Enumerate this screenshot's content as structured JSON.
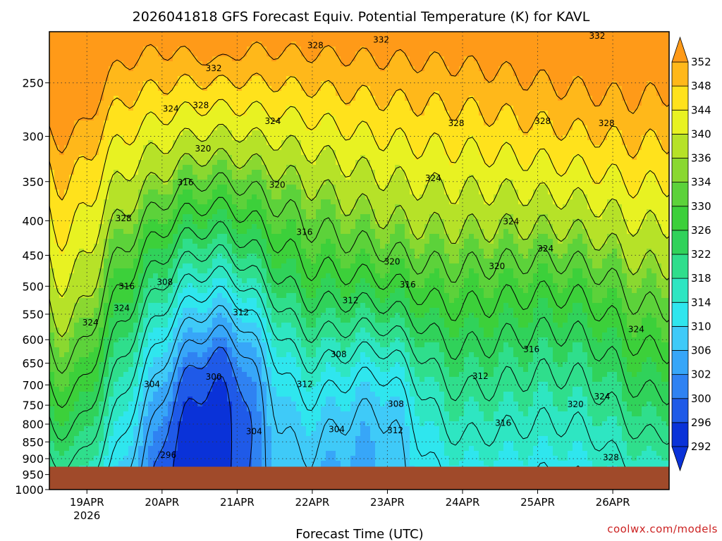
{
  "chart_data": {
    "type": "heatmap",
    "title": "2026041818 GFS Forecast Equiv. Potential Temperature (K) for KAVL",
    "xlabel": "Forecast Time (UTC)",
    "ylabel": "",
    "y_scale": "log-pressure",
    "y_inverted": true,
    "ylim": [
      1000,
      210
    ],
    "xlim_hours": [
      -12,
      186
    ],
    "x_ticks": [
      {
        "label": "19APR",
        "sublabel": "2026",
        "hour": 0
      },
      {
        "label": "20APR",
        "sublabel": "",
        "hour": 24
      },
      {
        "label": "21APR",
        "sublabel": "",
        "hour": 48
      },
      {
        "label": "22APR",
        "sublabel": "",
        "hour": 72
      },
      {
        "label": "23APR",
        "sublabel": "",
        "hour": 96
      },
      {
        "label": "24APR",
        "sublabel": "",
        "hour": 120
      },
      {
        "label": "25APR",
        "sublabel": "",
        "hour": 144
      },
      {
        "label": "26APR",
        "sublabel": "",
        "hour": 168
      }
    ],
    "y_ticks": [
      250,
      300,
      350,
      400,
      450,
      500,
      550,
      600,
      650,
      700,
      750,
      800,
      850,
      900,
      950,
      1000
    ],
    "surface_pressure_hpa": 925,
    "grid": true,
    "colorbar": {
      "levels": [
        292,
        296,
        300,
        302,
        306,
        310,
        314,
        318,
        322,
        326,
        330,
        334,
        336,
        340,
        344,
        348,
        352
      ],
      "colors": [
        "#0a32d8",
        "#1f5ae8",
        "#2f82f2",
        "#37a6f8",
        "#3fcaf8",
        "#2fe6ee",
        "#2ee6c2",
        "#2fde8c",
        "#30d25a",
        "#3cd03a",
        "#5cd23a",
        "#8ad830",
        "#b6e228",
        "#e8f222",
        "#ffe21c",
        "#ffb81a",
        "#ff9a18"
      ]
    },
    "contour_labels": [
      {
        "text": "332",
        "hour": 40.5,
        "p": 238
      },
      {
        "text": "328",
        "hour": 73,
        "p": 220
      },
      {
        "text": "332",
        "hour": 94,
        "p": 216
      },
      {
        "text": "332",
        "hour": 163,
        "p": 213
      },
      {
        "text": "324",
        "hour": 26.8,
        "p": 273
      },
      {
        "text": "328",
        "hour": 36.4,
        "p": 270
      },
      {
        "text": "324",
        "hour": 59.4,
        "p": 285
      },
      {
        "text": "328",
        "hour": 118,
        "p": 287
      },
      {
        "text": "328",
        "hour": 145.6,
        "p": 285
      },
      {
        "text": "328",
        "hour": 166,
        "p": 287
      },
      {
        "text": "320",
        "hour": 37.1,
        "p": 313
      },
      {
        "text": "316",
        "hour": 31.5,
        "p": 351
      },
      {
        "text": "320",
        "hour": 60.8,
        "p": 354
      },
      {
        "text": "324",
        "hour": 110.6,
        "p": 346
      },
      {
        "text": "328",
        "hour": 11.7,
        "p": 397
      },
      {
        "text": "316",
        "hour": 69.5,
        "p": 416
      },
      {
        "text": "324",
        "hour": 135.5,
        "p": 401
      },
      {
        "text": "324",
        "hour": 146.5,
        "p": 440
      },
      {
        "text": "320",
        "hour": 97.5,
        "p": 460
      },
      {
        "text": "320",
        "hour": 131,
        "p": 467
      },
      {
        "text": "308",
        "hour": 24.9,
        "p": 493
      },
      {
        "text": "316",
        "hour": 12.7,
        "p": 500
      },
      {
        "text": "316",
        "hour": 102.5,
        "p": 497
      },
      {
        "text": "312",
        "hour": 84.2,
        "p": 525
      },
      {
        "text": "324",
        "hour": 11.1,
        "p": 539
      },
      {
        "text": "312",
        "hour": 49.2,
        "p": 547
      },
      {
        "text": "324",
        "hour": 1.1,
        "p": 566
      },
      {
        "text": "324",
        "hour": 175.5,
        "p": 579
      },
      {
        "text": "316",
        "hour": 142,
        "p": 620
      },
      {
        "text": "308",
        "hour": 80.4,
        "p": 631
      },
      {
        "text": "312",
        "hour": 125.7,
        "p": 679
      },
      {
        "text": "304",
        "hour": 20.8,
        "p": 698
      },
      {
        "text": "300",
        "hour": 40.5,
        "p": 681
      },
      {
        "text": "312",
        "hour": 69.6,
        "p": 698
      },
      {
        "text": "324",
        "hour": 164.6,
        "p": 728
      },
      {
        "text": "308",
        "hour": 98.7,
        "p": 747
      },
      {
        "text": "320",
        "hour": 156.1,
        "p": 748
      },
      {
        "text": "316",
        "hour": 133,
        "p": 797
      },
      {
        "text": "304",
        "hour": 53.4,
        "p": 820
      },
      {
        "text": "304",
        "hour": 79.8,
        "p": 814
      },
      {
        "text": "312",
        "hour": 98.5,
        "p": 817
      },
      {
        "text": "296",
        "hour": 26,
        "p": 889
      },
      {
        "text": "328",
        "hour": 167.4,
        "p": 896
      }
    ]
  },
  "credit": "coolwx.com/models",
  "colors": {
    "ground": "#a04a2a",
    "frame": "#000000",
    "contour": "#000000"
  }
}
